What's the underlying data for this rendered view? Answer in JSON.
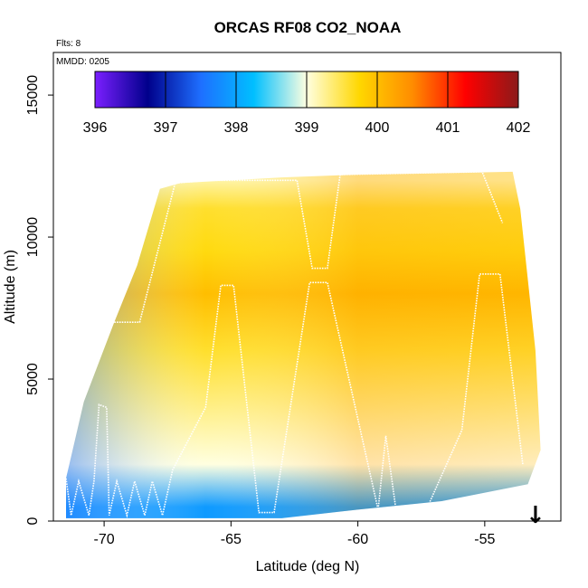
{
  "chart_data": {
    "type": "heatmap",
    "title": "ORCAS RF08 CO2_NOAA",
    "flights_note": "Flts: 8",
    "date_note": "MMDD: 0205",
    "xlabel": "Latitude (deg N)",
    "ylabel": "Altitude (m)",
    "xlim": [
      -72,
      -52
    ],
    "ylim": [
      0,
      16500
    ],
    "x_ticks": [
      -70,
      -65,
      -60,
      -55
    ],
    "x_tick_labels": [
      "-70",
      "-65",
      "-60",
      "-55"
    ],
    "y_ticks": [
      0,
      5000,
      10000,
      15000
    ],
    "y_tick_labels": [
      "0",
      "5000",
      "10000",
      "15000"
    ],
    "colorbar": {
      "range": [
        396,
        402
      ],
      "ticks": [
        396,
        397,
        398,
        399,
        400,
        401,
        402
      ],
      "tick_labels": [
        "396",
        "397",
        "398",
        "399",
        "400",
        "401",
        "402"
      ],
      "colors": [
        "#7b1fff",
        "#00008b",
        "#1e6fff",
        "#00bfff",
        "#ffffe0",
        "#ffd700",
        "#ff8c00",
        "#ff0000",
        "#8b1a1a"
      ]
    },
    "coverage_top_m": [
      {
        "lat": -71.5,
        "alt": 1500
      },
      {
        "lat": -70.8,
        "alt": 4200
      },
      {
        "lat": -69.6,
        "alt": 7000
      },
      {
        "lat": -68.7,
        "alt": 9000
      },
      {
        "lat": -67.8,
        "alt": 11700
      },
      {
        "lat": -67.0,
        "alt": 11900
      },
      {
        "lat": -63.0,
        "alt": 12100
      },
      {
        "lat": -60.0,
        "alt": 12200
      },
      {
        "lat": -53.9,
        "alt": 12300
      },
      {
        "lat": -53.6,
        "alt": 11000
      },
      {
        "lat": -53.0,
        "alt": 6000
      },
      {
        "lat": -52.8,
        "alt": 2500
      },
      {
        "lat": -53.3,
        "alt": 1300
      }
    ],
    "coverage_bottom_m": [
      {
        "lat": -53.3,
        "alt": 1300
      },
      {
        "lat": -56.7,
        "alt": 700
      },
      {
        "lat": -60.0,
        "alt": 400
      },
      {
        "lat": -63.0,
        "alt": 100
      },
      {
        "lat": -71.5,
        "alt": 100
      }
    ],
    "co2_field_ppm": [
      {
        "alt": 500,
        "value": 397.9
      },
      {
        "alt": 2000,
        "value": 399.0
      },
      {
        "alt": 4000,
        "value": 399.3
      },
      {
        "alt": 6000,
        "value": 399.6
      },
      {
        "alt": 8000,
        "value": 400.0
      },
      {
        "alt": 9500,
        "value": 399.7
      },
      {
        "alt": 11000,
        "value": 399.6
      },
      {
        "alt": 12000,
        "value": 399.2
      }
    ],
    "flight_track": [
      {
        "lat": -71.5,
        "alt": 1500
      },
      {
        "lat": -71.3,
        "alt": 200
      },
      {
        "lat": -71.0,
        "alt": 1400
      },
      {
        "lat": -70.6,
        "alt": 200
      },
      {
        "lat": -70.4,
        "alt": 1400
      },
      {
        "lat": -70.2,
        "alt": 4100
      },
      {
        "lat": -69.9,
        "alt": 4000
      },
      {
        "lat": -69.8,
        "alt": 200
      },
      {
        "lat": -69.5,
        "alt": 1400
      },
      {
        "lat": -69.1,
        "alt": 200
      },
      {
        "lat": -68.8,
        "alt": 1400
      },
      {
        "lat": -68.4,
        "alt": 200
      },
      {
        "lat": -68.1,
        "alt": 1400
      },
      {
        "lat": -67.7,
        "alt": 200
      },
      {
        "lat": -67.3,
        "alt": 1800
      },
      {
        "lat": -66.0,
        "alt": 4000
      },
      {
        "lat": -65.4,
        "alt": 8300
      },
      {
        "lat": -64.9,
        "alt": 8300
      },
      {
        "lat": -63.9,
        "alt": 300
      },
      {
        "lat": -63.3,
        "alt": 300
      },
      {
        "lat": -61.9,
        "alt": 8400
      },
      {
        "lat": -61.2,
        "alt": 8400
      },
      {
        "lat": -59.2,
        "alt": 400
      },
      {
        "lat": -58.9,
        "alt": 3000
      },
      {
        "lat": -58.5,
        "alt": 400
      },
      {
        "lat": -57.3,
        "alt": 400
      },
      {
        "lat": -55.9,
        "alt": 3200
      },
      {
        "lat": -55.2,
        "alt": 8700
      },
      {
        "lat": -54.4,
        "alt": 8700
      },
      {
        "lat": -53.5,
        "alt": 2000
      }
    ],
    "flight_track_upper": [
      {
        "lat": -69.8,
        "alt": 7000
      },
      {
        "lat": -68.6,
        "alt": 7000
      },
      {
        "lat": -67.2,
        "alt": 11900
      },
      {
        "lat": -65.9,
        "alt": 12000
      },
      {
        "lat": -62.4,
        "alt": 12000
      },
      {
        "lat": -61.8,
        "alt": 8900
      },
      {
        "lat": -61.2,
        "alt": 8900
      },
      {
        "lat": -60.7,
        "alt": 12200
      },
      {
        "lat": -55.1,
        "alt": 12300
      },
      {
        "lat": -54.3,
        "alt": 10500
      }
    ],
    "marker": {
      "lat": -53.0,
      "label": "↓"
    }
  }
}
